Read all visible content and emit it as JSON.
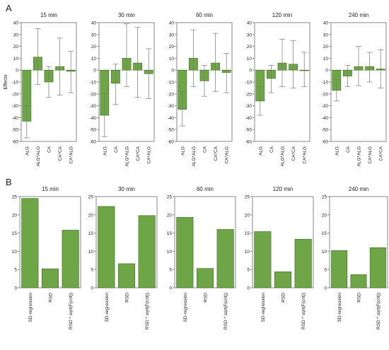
{
  "colors": {
    "bar_fill": "#6ea647",
    "bar_stroke": "#3f6b22",
    "error_bar": "#777777",
    "frame": "#8a8a8a",
    "text": "#222222"
  },
  "panel_labels": {
    "a": "A",
    "b": "B"
  },
  "chart_data": [
    {
      "type": "bar",
      "panel": "A",
      "title": "15 min",
      "categories": [
        "ALG",
        "ALG*ALG",
        "CA",
        "CA*CA",
        "CA*ALG"
      ],
      "values": [
        -43,
        11,
        -10,
        3,
        -1
      ],
      "error_low": [
        -57,
        -12,
        -23,
        -21,
        -19
      ],
      "error_high": [
        -30,
        35,
        3,
        27,
        16
      ],
      "ylabel": "Effects",
      "ylim": [
        -60,
        40
      ],
      "yticks": [
        -60,
        -50,
        -40,
        -30,
        -20,
        -10,
        0,
        10,
        20,
        30,
        40
      ]
    },
    {
      "type": "bar",
      "panel": "A",
      "title": "30 min",
      "categories": [
        "ALG",
        "CA",
        "ALG*ALG",
        "CA*CA",
        "CA*ALG"
      ],
      "values": [
        -38,
        -11,
        10,
        6,
        -3
      ],
      "error_low": [
        -56,
        -29,
        -14,
        -23,
        -24
      ],
      "error_high": [
        -20,
        5,
        39,
        36,
        18
      ],
      "ylim": [
        -60,
        40
      ],
      "yticks": [
        -60,
        -50,
        -40,
        -30,
        -20,
        -10,
        0,
        10,
        20,
        30,
        40
      ]
    },
    {
      "type": "bar",
      "panel": "A",
      "title": "60 min",
      "categories": [
        "ALG",
        "ALG*ALG",
        "CA",
        "CA*CA",
        "CA*ALG"
      ],
      "values": [
        -33,
        10,
        -9,
        6,
        -2
      ],
      "error_low": [
        -47,
        -14,
        -22,
        -18,
        -19
      ],
      "error_high": [
        -18,
        34,
        4,
        31,
        14
      ],
      "ylim": [
        -60,
        40
      ],
      "yticks": [
        -60,
        -50,
        -40,
        -30,
        -20,
        -10,
        0,
        10,
        20,
        30,
        40
      ]
    },
    {
      "type": "bar",
      "panel": "A",
      "title": "120 min",
      "categories": [
        "ALG",
        "CA",
        "ALG*ALG",
        "CA*CA",
        "CA*ALG"
      ],
      "values": [
        -26,
        -7,
        6,
        5,
        0
      ],
      "error_low": [
        -38,
        -19,
        -14,
        -15,
        -14
      ],
      "error_high": [
        -14,
        4,
        26,
        25,
        15
      ],
      "ylim": [
        -60,
        40
      ],
      "yticks": [
        -60,
        -50,
        -40,
        -30,
        -20,
        -10,
        0,
        10,
        20,
        30,
        40
      ]
    },
    {
      "type": "bar",
      "panel": "A",
      "title": "240 min",
      "categories": [
        "ALG",
        "CA",
        "ALG*ALG",
        "CA*ALG",
        "CA*CA"
      ],
      "values": [
        -17,
        -5,
        3,
        3,
        1
      ],
      "error_low": [
        -26,
        -14,
        -13,
        -10,
        -15
      ],
      "error_high": [
        -8,
        4,
        20,
        15,
        17
      ],
      "ylim": [
        -60,
        40
      ],
      "yticks": [
        -60,
        -50,
        -40,
        -30,
        -20,
        -10,
        0,
        10,
        20,
        30,
        40
      ]
    },
    {
      "type": "bar",
      "panel": "B",
      "title": "15 min",
      "categories": [
        "SD-regression",
        "RSD",
        "RSD * sqrt(F(crit))"
      ],
      "values": [
        24.5,
        5.2,
        15.8
      ],
      "ylim": [
        0,
        25
      ],
      "yticks": [
        0,
        5,
        10,
        15,
        20,
        25
      ]
    },
    {
      "type": "bar",
      "panel": "B",
      "title": "30 min",
      "categories": [
        "SD-regression",
        "RSD",
        "RSD * sqrt(F(crit))"
      ],
      "values": [
        22.3,
        6.6,
        19.8
      ],
      "ylim": [
        0,
        25
      ],
      "yticks": [
        0,
        5,
        10,
        15,
        20,
        25
      ]
    },
    {
      "type": "bar",
      "panel": "B",
      "title": "60 min",
      "categories": [
        "SD-regression",
        "RSD",
        "RSD * sqrt(F(crit))"
      ],
      "values": [
        19.3,
        5.3,
        16.0
      ],
      "ylim": [
        0,
        25
      ],
      "yticks": [
        0,
        5,
        10,
        15,
        20,
        25
      ]
    },
    {
      "type": "bar",
      "panel": "B",
      "title": "120 min",
      "categories": [
        "SD-regression",
        "RSD",
        "RSD * sqrt(F(crit))"
      ],
      "values": [
        15.4,
        4.4,
        13.3
      ],
      "ylim": [
        0,
        25
      ],
      "yticks": [
        0,
        5,
        10,
        15,
        20,
        25
      ]
    },
    {
      "type": "bar",
      "panel": "B",
      "title": "240 min",
      "categories": [
        "SD-regression",
        "RSD",
        "RSD * sqrt(F(crit))"
      ],
      "values": [
        10.2,
        3.6,
        11.0
      ],
      "ylim": [
        0,
        25
      ],
      "yticks": [
        0,
        5,
        10,
        15,
        20,
        25
      ]
    }
  ]
}
